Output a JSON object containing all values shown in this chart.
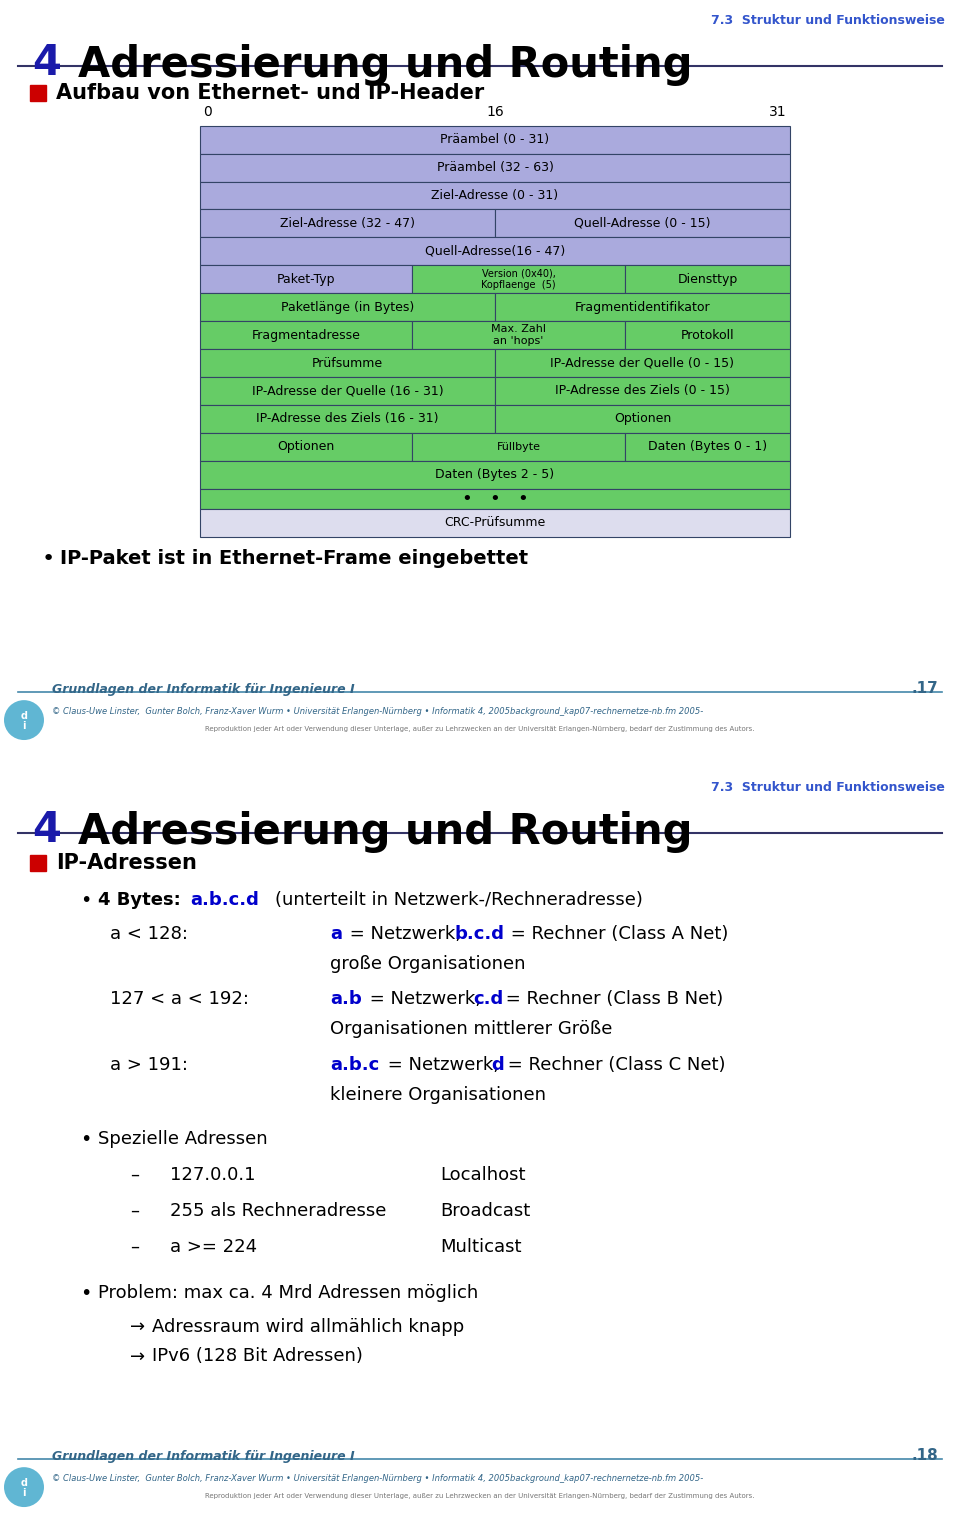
{
  "page1": {
    "title_num": "4",
    "title_text": "Adressierung und Routing",
    "subtitle": "7.3  Struktur und Funktionsweise",
    "section_title": "Aufbau von Ethernet- und IP-Header",
    "bullet": "IP-Paket ist in Ethernet-Frame eingebettet",
    "footer_title": "Grundlagen der Informatik für Ingenieure I",
    "footer_page": ".17",
    "footer_sub": "© Claus-Uwe Linster,  Gunter Bolch, Franz-Xaver Wurm • Universität Erlangen-Nürnberg • Informatik 4, 2005background_kap07-rechnernetze-nb.fm 2005-",
    "footer_copy": "Reproduktion jeder Art oder Verwendung dieser Unterlage, außer zu Lehrzwecken an der Universität Erlangen-Nürnberg, bedarf der Zustimmung des Autors.",
    "table_rows": [
      {
        "type": "full",
        "text": "Präambel (0 - 31)",
        "color": "#aaaadd"
      },
      {
        "type": "full",
        "text": "Präambel (32 - 63)",
        "color": "#aaaadd"
      },
      {
        "type": "full",
        "text": "Ziel-Adresse (0 - 31)",
        "color": "#aaaadd"
      },
      {
        "type": "half2",
        "left": "Ziel-Adresse (32 - 47)",
        "right": "Quell-Adresse (0 - 15)",
        "color": "#aaaadd"
      },
      {
        "type": "full",
        "text": "Quell-Adresse(16 - 47)",
        "color": "#aaaadd"
      },
      {
        "type": "third3",
        "left": "Paket-Typ",
        "mid": "Version (0x40),\nKopflaenge  (5)",
        "right": "Diensttyp",
        "color_left": "#aaaadd",
        "color_mid": "#66cc66",
        "color_right": "#66cc66"
      },
      {
        "type": "half2g",
        "left": "Paketlänge (in Bytes)",
        "right": "Fragmentidentifikator",
        "color": "#66cc66"
      },
      {
        "type": "third3g",
        "left": "Fragmentadresse",
        "mid": "Max. Zahl\nan 'hops'",
        "right": "Protokoll",
        "color": "#66cc66"
      },
      {
        "type": "half2g",
        "left": "Prüfsumme",
        "right": "IP-Adresse der Quelle (0 - 15)",
        "color": "#66cc66"
      },
      {
        "type": "half2g",
        "left": "IP-Adresse der Quelle (16 - 31)",
        "right": "IP-Adresse des Ziels (0 - 15)",
        "color": "#66cc66"
      },
      {
        "type": "half2g",
        "left": "IP-Adresse des Ziels (16 - 31)",
        "right": "Optionen",
        "color": "#66cc66"
      },
      {
        "type": "third3g",
        "left": "Optionen",
        "mid": "Füllbyte",
        "right": "Daten (Bytes 0 - 1)",
        "color": "#66cc66"
      },
      {
        "type": "full",
        "text": "Daten (Bytes 2 - 5)",
        "color": "#66cc66"
      },
      {
        "type": "dots",
        "text": "•   •   •",
        "color": "#66cc66"
      },
      {
        "type": "full",
        "text": "CRC-Prüfsumme",
        "color": "#ddddee"
      }
    ]
  },
  "page2": {
    "title_num": "4",
    "title_text": "Adressierung und Routing",
    "subtitle": "7.3  Struktur und Funktionsweise",
    "section_title": "IP-Adressen",
    "footer_title": "Grundlagen der Informatik für Ingenieure I",
    "footer_page": ".18",
    "footer_sub": "© Claus-Uwe Linster,  Gunter Bolch, Franz-Xaver Wurm • Universität Erlangen-Nürnberg • Informatik 4, 2005background_kap07-rechnernetze-nb.fm 2005-",
    "footer_copy": "Reproduktion jeder Art oder Verwendung dieser Unterlage, außer zu Lehrzwecken an der Universität Erlangen-Nürnberg, bedarf der Zustimmung des Autors."
  },
  "colors": {
    "blue_header": "#1a1aaa",
    "blue_subtitle": "#3355cc",
    "red_square": "#cc0000",
    "dark_line": "#333366",
    "text_dark": "#000000",
    "blue_bold": "#0000cc",
    "teal_footer": "#336688",
    "teal_line": "#4488aa",
    "bg": "#ffffff"
  }
}
